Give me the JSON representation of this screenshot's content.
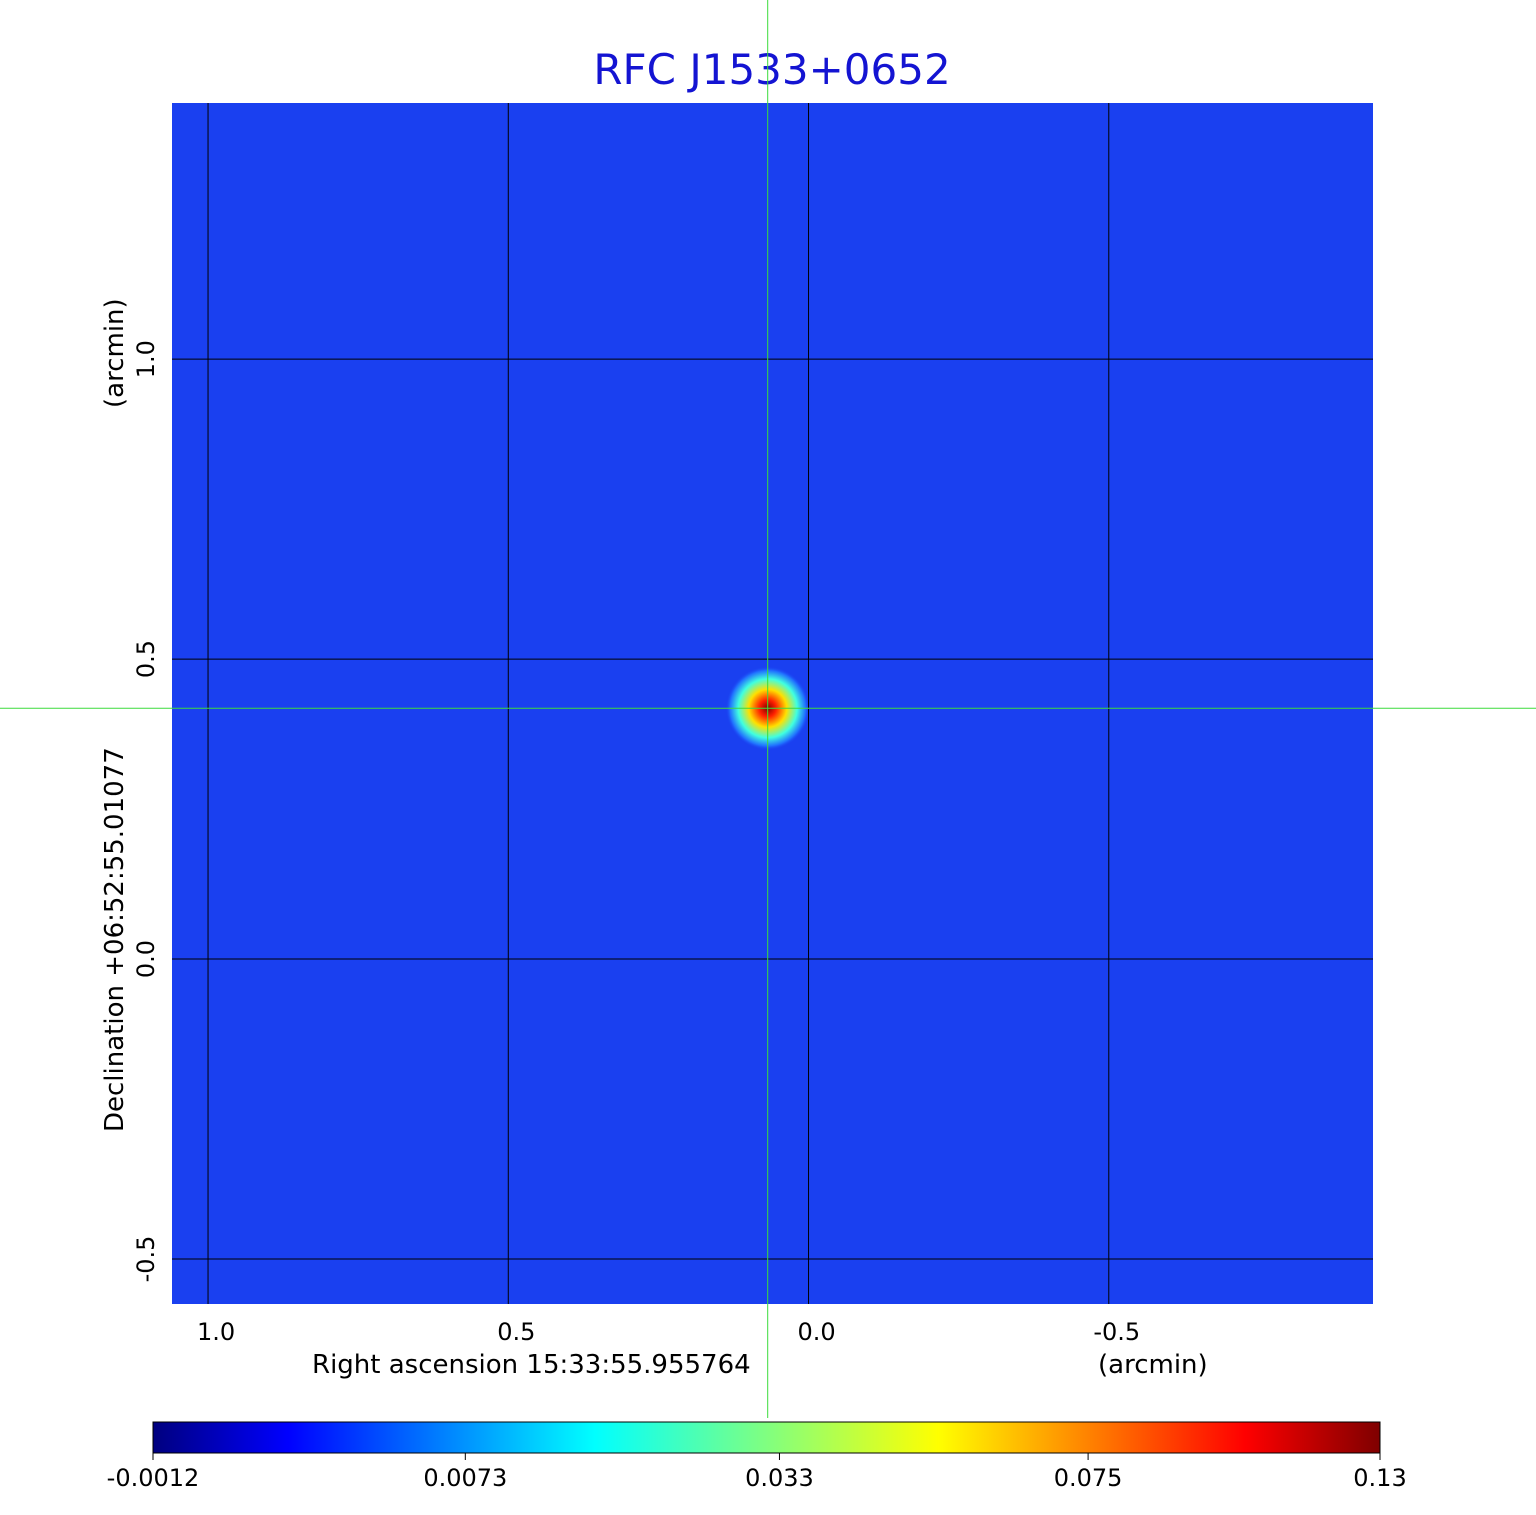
{
  "chart_data": {
    "type": "image",
    "title": "RFC J1533+0652",
    "x_label": "Right ascension  15:33:55.955764",
    "x_unit": "(arcmin)",
    "y_label": "Declination  +06:52:55.01077",
    "y_unit": "(arcmin)",
    "xlim": [
      1.06,
      -0.94
    ],
    "ylim": [
      -0.575,
      1.427
    ],
    "xticks": [
      {
        "value": 1,
        "label": "1.0"
      },
      0.5,
      {
        "value": 0,
        "label": "0.0"
      },
      -0.5
    ],
    "yticks": [
      {
        "value": 1,
        "label": "1.0"
      },
      0.5,
      {
        "value": 0,
        "label": "0.0"
      },
      -0.5
    ],
    "grid": true,
    "crosshair": {
      "x": 0.068,
      "y": 0.418
    },
    "colormap": "jet",
    "colorbar": {
      "scale": "sqrt",
      "lim": [
        -0.0012,
        0.13
      ],
      "ticks": [
        -0.0012,
        0.0073,
        0.033,
        0.075,
        0.13
      ]
    }
  }
}
